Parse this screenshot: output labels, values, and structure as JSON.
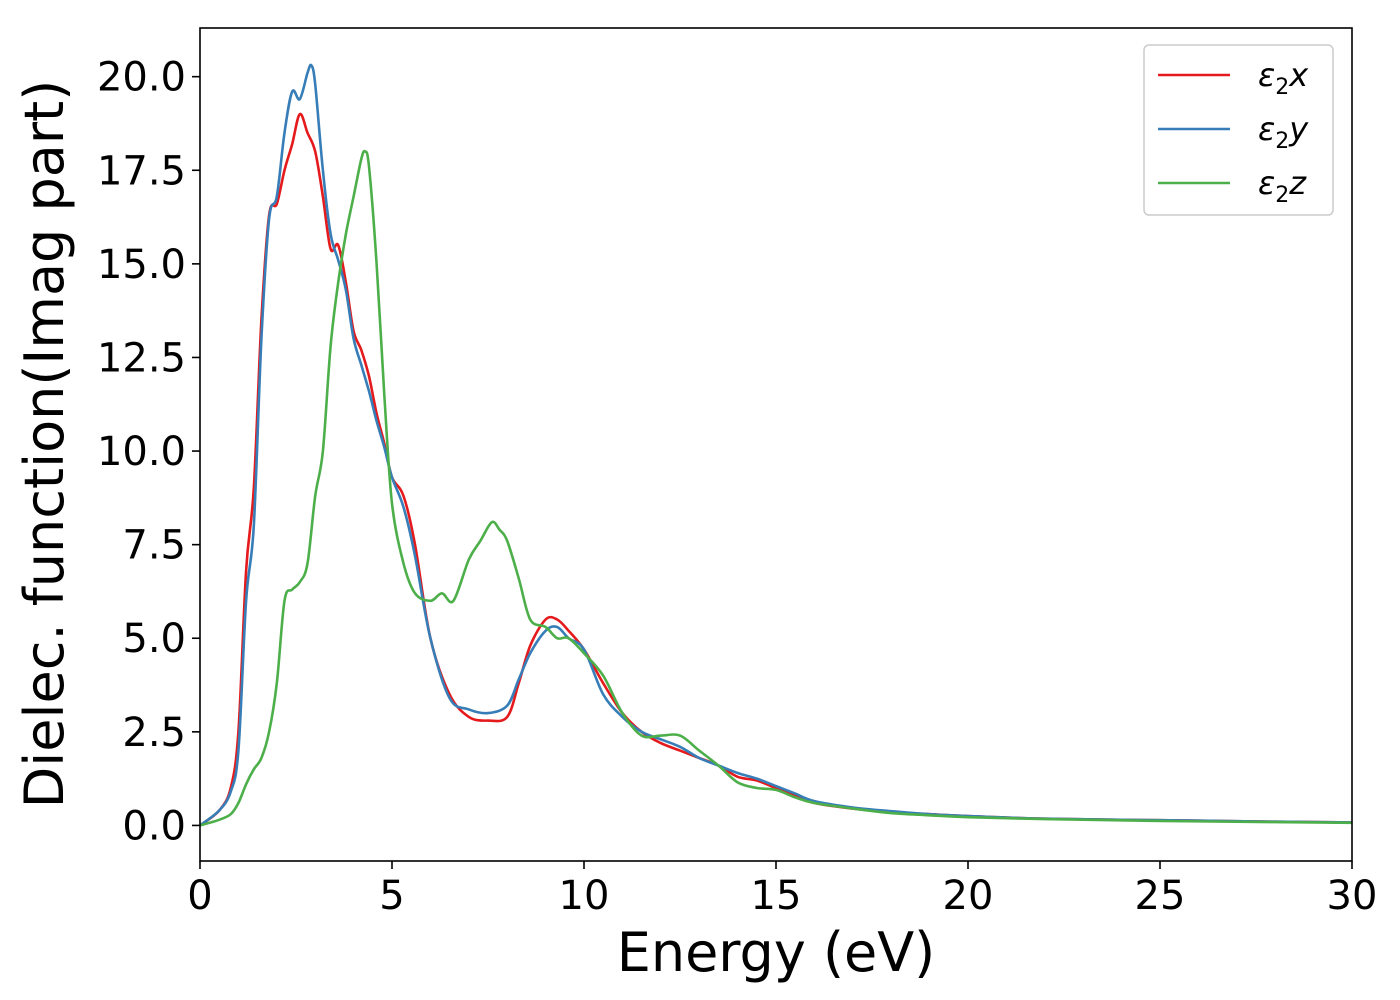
{
  "chart_data": {
    "type": "line",
    "title": "",
    "xlabel": "Energy (eV)",
    "ylabel": "Dielec. function(Imag part)",
    "xlim": [
      0,
      30
    ],
    "ylim": [
      -0.95,
      21.3
    ],
    "x_ticks": [
      0,
      5,
      10,
      15,
      20,
      25,
      30
    ],
    "x_tick_labels": [
      "0",
      "5",
      "10",
      "15",
      "20",
      "25",
      "30"
    ],
    "y_ticks": [
      0.0,
      2.5,
      5.0,
      7.5,
      10.0,
      12.5,
      15.0,
      17.5,
      20.0
    ],
    "y_tick_labels": [
      "0.0",
      "2.5",
      "5.0",
      "7.5",
      "10.0",
      "12.5",
      "15.0",
      "17.5",
      "20.0"
    ],
    "grid": false,
    "legend_position": "top-right",
    "series": [
      {
        "name": "ε2x",
        "legend_main": "ε",
        "legend_sub": "2",
        "legend_suffix": "x",
        "color": "#e41a1c",
        "x": [
          0,
          0.5,
          0.8,
          1.0,
          1.2,
          1.4,
          1.6,
          1.8,
          2.0,
          2.2,
          2.4,
          2.6,
          2.8,
          3.0,
          3.2,
          3.4,
          3.6,
          3.8,
          4.0,
          4.2,
          4.4,
          4.6,
          4.8,
          5.0,
          5.3,
          5.6,
          6.0,
          6.5,
          7.0,
          7.5,
          8.0,
          8.3,
          8.6,
          9.0,
          9.3,
          9.6,
          10.0,
          10.5,
          11.0,
          11.5,
          12.0,
          12.5,
          13.0,
          13.5,
          14.0,
          14.5,
          15.0,
          15.5,
          16.0,
          17.0,
          18.0,
          19.0,
          20.0,
          22.0,
          25.0,
          28.0,
          30.0
        ],
        "y": [
          0.0,
          0.4,
          1.0,
          2.5,
          6.8,
          9.0,
          13.5,
          16.3,
          16.6,
          17.5,
          18.2,
          19.0,
          18.5,
          18.0,
          16.8,
          15.4,
          15.5,
          14.5,
          13.2,
          12.7,
          12.0,
          11.0,
          10.2,
          9.3,
          8.8,
          7.5,
          5.0,
          3.5,
          2.9,
          2.8,
          2.9,
          3.8,
          4.8,
          5.5,
          5.5,
          5.2,
          4.7,
          3.8,
          3.0,
          2.5,
          2.2,
          2.0,
          1.8,
          1.6,
          1.3,
          1.2,
          1.0,
          0.8,
          0.6,
          0.45,
          0.35,
          0.3,
          0.25,
          0.18,
          0.14,
          0.1,
          0.08
        ]
      },
      {
        "name": "ε2y",
        "legend_main": "ε",
        "legend_sub": "2",
        "legend_suffix": "y",
        "color": "#377eb8",
        "x": [
          0,
          0.5,
          0.8,
          1.0,
          1.2,
          1.4,
          1.6,
          1.8,
          2.0,
          2.2,
          2.4,
          2.6,
          2.8,
          2.9,
          3.0,
          3.2,
          3.4,
          3.6,
          3.8,
          4.0,
          4.2,
          4.4,
          4.6,
          4.8,
          5.0,
          5.3,
          5.6,
          6.0,
          6.5,
          7.0,
          7.5,
          8.0,
          8.3,
          8.6,
          9.0,
          9.3,
          9.6,
          10.0,
          10.5,
          11.0,
          11.5,
          12.0,
          12.5,
          13.0,
          13.5,
          14.0,
          14.5,
          15.0,
          15.5,
          16.0,
          17.0,
          18.0,
          19.0,
          20.0,
          22.0,
          25.0,
          28.0,
          30.0
        ],
        "y": [
          0.0,
          0.4,
          0.9,
          2.0,
          6.0,
          8.0,
          13.0,
          16.2,
          16.8,
          18.5,
          19.6,
          19.4,
          20.1,
          20.3,
          19.8,
          17.5,
          15.8,
          15.1,
          14.3,
          13.0,
          12.3,
          11.6,
          10.8,
          10.1,
          9.3,
          8.5,
          7.2,
          5.0,
          3.4,
          3.1,
          3.0,
          3.2,
          3.9,
          4.6,
          5.2,
          5.3,
          5.0,
          4.7,
          3.5,
          2.9,
          2.5,
          2.3,
          2.1,
          1.8,
          1.6,
          1.4,
          1.25,
          1.05,
          0.85,
          0.65,
          0.48,
          0.38,
          0.3,
          0.25,
          0.18,
          0.14,
          0.1,
          0.08
        ]
      },
      {
        "name": "ε2z",
        "legend_main": "ε",
        "legend_sub": "2",
        "legend_suffix": "z",
        "color": "#4daf4a",
        "x": [
          0,
          0.5,
          0.8,
          1.0,
          1.2,
          1.4,
          1.6,
          1.8,
          2.0,
          2.2,
          2.4,
          2.6,
          2.8,
          3.0,
          3.2,
          3.4,
          3.6,
          3.8,
          4.0,
          4.2,
          4.3,
          4.4,
          4.6,
          4.8,
          5.0,
          5.3,
          5.6,
          6.0,
          6.3,
          6.6,
          7.0,
          7.3,
          7.6,
          7.8,
          8.0,
          8.3,
          8.6,
          9.0,
          9.3,
          9.6,
          10.0,
          10.5,
          11.0,
          11.5,
          12.0,
          12.5,
          13.0,
          13.5,
          14.0,
          14.5,
          15.0,
          15.5,
          16.0,
          17.0,
          18.0,
          19.0,
          20.0,
          22.0,
          25.0,
          28.0,
          30.0
        ],
        "y": [
          0.0,
          0.15,
          0.3,
          0.6,
          1.1,
          1.5,
          1.8,
          2.5,
          3.8,
          6.0,
          6.3,
          6.5,
          7.0,
          8.8,
          10.0,
          12.8,
          14.5,
          15.8,
          16.8,
          17.8,
          18.0,
          17.6,
          15.0,
          11.5,
          8.6,
          7.0,
          6.2,
          6.0,
          6.2,
          6.0,
          7.1,
          7.6,
          8.1,
          7.9,
          7.6,
          6.6,
          5.5,
          5.3,
          5.0,
          5.0,
          4.6,
          4.0,
          3.0,
          2.4,
          2.4,
          2.4,
          2.0,
          1.6,
          1.15,
          1.0,
          0.95,
          0.75,
          0.6,
          0.45,
          0.33,
          0.27,
          0.22,
          0.17,
          0.12,
          0.09,
          0.07
        ]
      }
    ]
  }
}
